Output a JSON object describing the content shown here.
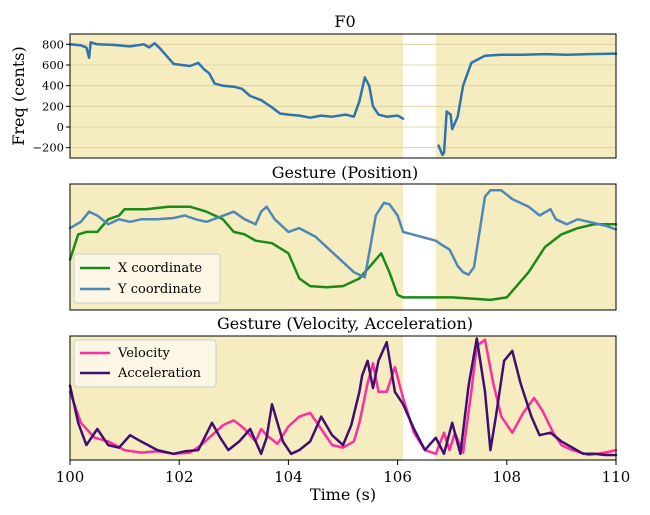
{
  "colors": {
    "panel_bg": "#f5edbf",
    "gap_bg": "#ffffff",
    "grid": "#d9cf9a",
    "f0_line": "#2e73b0",
    "x_coord": "#1a8a1a",
    "y_coord": "#4e88b8",
    "velocity": "#ff2ea0",
    "acceleration": "#3f0f72"
  },
  "chart_data": [
    {
      "type": "line",
      "title": "F0",
      "xlabel": "",
      "ylabel": "Freq (cents)",
      "xlim": [
        100,
        110
      ],
      "ylim": [
        -300,
        900
      ],
      "yticks": [
        -200,
        0,
        200,
        400,
        600,
        800
      ],
      "ytick_labels": [
        "−200",
        "0",
        "200",
        "400",
        "600",
        "800"
      ],
      "grid": "horizontal",
      "shaded_gap": [
        106.1,
        106.7
      ],
      "series": [
        {
          "name": "",
          "segments": [
            [
              [
                100.0,
                800
              ],
              [
                100.2,
                790
              ],
              [
                100.3,
                770
              ],
              [
                100.35,
                670
              ],
              [
                100.38,
                820
              ],
              [
                100.5,
                800
              ],
              [
                100.8,
                795
              ],
              [
                101.1,
                780
              ],
              [
                101.35,
                800
              ],
              [
                101.45,
                770
              ],
              [
                101.55,
                810
              ],
              [
                101.65,
                760
              ],
              [
                101.8,
                670
              ],
              [
                101.9,
                610
              ],
              [
                102.05,
                600
              ],
              [
                102.2,
                590
              ],
              [
                102.35,
                620
              ],
              [
                102.45,
                560
              ],
              [
                102.55,
                520
              ],
              [
                102.65,
                420
              ],
              [
                102.8,
                400
              ],
              [
                103.0,
                390
              ],
              [
                103.15,
                370
              ],
              [
                103.3,
                300
              ],
              [
                103.5,
                260
              ],
              [
                103.7,
                190
              ],
              [
                103.85,
                130
              ],
              [
                104.0,
                120
              ],
              [
                104.2,
                110
              ],
              [
                104.4,
                90
              ],
              [
                104.6,
                110
              ],
              [
                104.8,
                100
              ],
              [
                105.05,
                120
              ],
              [
                105.2,
                100
              ],
              [
                105.3,
                250
              ],
              [
                105.4,
                480
              ],
              [
                105.48,
                400
              ],
              [
                105.55,
                200
              ],
              [
                105.65,
                120
              ],
              [
                105.8,
                100
              ],
              [
                106.0,
                110
              ],
              [
                106.1,
                80
              ]
            ],
            [
              [
                106.75,
                -180
              ],
              [
                106.82,
                -270
              ],
              [
                106.85,
                -250
              ],
              [
                106.9,
                150
              ],
              [
                106.97,
                120
              ],
              [
                107.0,
                -20
              ],
              [
                107.1,
                100
              ],
              [
                107.2,
                400
              ],
              [
                107.35,
                620
              ],
              [
                107.6,
                690
              ],
              [
                107.9,
                700
              ],
              [
                108.3,
                700
              ],
              [
                108.7,
                705
              ],
              [
                109.1,
                700
              ],
              [
                109.5,
                705
              ],
              [
                110.0,
                710
              ]
            ]
          ]
        }
      ]
    },
    {
      "type": "line",
      "title": "Gesture (Position)",
      "xlabel": "",
      "ylabel": "",
      "xlim": [
        100,
        110
      ],
      "ylim": [
        0,
        1
      ],
      "shaded_gap": [
        106.1,
        106.7
      ],
      "legend_position": "lower-left",
      "series": [
        {
          "name": "X coordinate",
          "x": [
            100.0,
            100.15,
            100.3,
            100.5,
            100.7,
            100.9,
            101.0,
            101.4,
            101.8,
            102.2,
            102.5,
            102.8,
            103.0,
            103.2,
            103.4,
            103.7,
            104.0,
            104.2,
            104.4,
            104.7,
            105.0,
            105.3,
            105.5,
            105.7,
            105.85,
            106.0,
            106.1,
            106.5,
            107.0,
            107.4,
            107.7,
            108.0,
            108.1,
            108.4,
            108.7,
            109.0,
            109.3,
            109.6,
            109.8,
            110.0
          ],
          "values": [
            0.4,
            0.6,
            0.62,
            0.62,
            0.72,
            0.75,
            0.8,
            0.8,
            0.82,
            0.82,
            0.78,
            0.72,
            0.62,
            0.6,
            0.55,
            0.53,
            0.45,
            0.25,
            0.19,
            0.18,
            0.19,
            0.25,
            0.35,
            0.45,
            0.3,
            0.12,
            0.1,
            0.1,
            0.1,
            0.09,
            0.08,
            0.1,
            0.15,
            0.3,
            0.5,
            0.6,
            0.65,
            0.68,
            0.68,
            0.68
          ]
        },
        {
          "name": "Y coordinate",
          "x": [
            100.0,
            100.2,
            100.35,
            100.5,
            100.7,
            100.9,
            101.1,
            101.3,
            101.6,
            101.9,
            102.1,
            102.3,
            102.5,
            102.75,
            103.0,
            103.2,
            103.4,
            103.5,
            103.6,
            103.75,
            104.0,
            104.2,
            104.5,
            104.7,
            105.0,
            105.2,
            105.4,
            105.5,
            105.6,
            105.75,
            105.85,
            106.0,
            106.1,
            106.7,
            106.8,
            106.95,
            107.1,
            107.2,
            107.3,
            107.4,
            107.5,
            107.6,
            107.7,
            107.9,
            108.1,
            108.4,
            108.6,
            108.8,
            108.9,
            109.1,
            109.3,
            109.6,
            109.8,
            110.0
          ],
          "values": [
            0.65,
            0.7,
            0.78,
            0.75,
            0.68,
            0.72,
            0.7,
            0.72,
            0.72,
            0.73,
            0.75,
            0.72,
            0.7,
            0.74,
            0.78,
            0.72,
            0.68,
            0.78,
            0.82,
            0.72,
            0.62,
            0.65,
            0.58,
            0.5,
            0.38,
            0.3,
            0.26,
            0.5,
            0.75,
            0.85,
            0.84,
            0.75,
            0.62,
            0.55,
            0.52,
            0.48,
            0.35,
            0.3,
            0.28,
            0.34,
            0.62,
            0.9,
            0.95,
            0.95,
            0.88,
            0.82,
            0.75,
            0.8,
            0.72,
            0.68,
            0.72,
            0.69,
            0.67,
            0.64
          ]
        }
      ]
    },
    {
      "type": "line",
      "title": "Gesture (Velocity, Acceleration)",
      "xlabel": "Time (s)",
      "ylabel": "",
      "xlim": [
        100,
        110
      ],
      "ylim": [
        0,
        1
      ],
      "xticks": [
        100,
        102,
        104,
        106,
        108,
        110
      ],
      "xtick_labels": [
        "100",
        "102",
        "104",
        "106",
        "108",
        "110"
      ],
      "shaded_gap": [
        106.1,
        106.7
      ],
      "legend_position": "top-left",
      "series": [
        {
          "name": "Velocity",
          "x": [
            100.0,
            100.2,
            100.45,
            100.7,
            101.0,
            101.3,
            101.6,
            101.9,
            102.2,
            102.4,
            102.6,
            102.8,
            103.0,
            103.2,
            103.4,
            103.5,
            103.6,
            103.8,
            104.0,
            104.2,
            104.4,
            104.6,
            104.8,
            105.0,
            105.2,
            105.3,
            105.45,
            105.55,
            105.65,
            105.8,
            105.95,
            106.1,
            106.3,
            106.5,
            106.7,
            106.85,
            106.95,
            107.05,
            107.2,
            107.35,
            107.45,
            107.6,
            107.75,
            107.9,
            108.1,
            108.3,
            108.5,
            108.65,
            108.85,
            109.0,
            109.2,
            109.5,
            109.8,
            110.0
          ],
          "values": [
            0.55,
            0.3,
            0.18,
            0.15,
            0.08,
            0.06,
            0.07,
            0.05,
            0.06,
            0.12,
            0.2,
            0.28,
            0.32,
            0.25,
            0.15,
            0.25,
            0.2,
            0.13,
            0.27,
            0.35,
            0.38,
            0.25,
            0.12,
            0.1,
            0.15,
            0.3,
            0.62,
            0.78,
            0.55,
            0.55,
            0.75,
            0.5,
            0.22,
            0.08,
            0.05,
            0.22,
            0.08,
            0.22,
            0.06,
            0.55,
            0.92,
            0.97,
            0.62,
            0.35,
            0.22,
            0.38,
            0.5,
            0.4,
            0.22,
            0.12,
            0.08,
            0.04,
            0.06,
            0.08
          ]
        },
        {
          "name": "Acceleration",
          "x": [
            100.0,
            100.15,
            100.3,
            100.5,
            100.7,
            100.9,
            101.1,
            101.3,
            101.6,
            101.9,
            102.1,
            102.35,
            102.6,
            102.75,
            102.9,
            103.1,
            103.3,
            103.5,
            103.6,
            103.7,
            103.9,
            104.05,
            104.2,
            104.4,
            104.6,
            104.8,
            105.0,
            105.15,
            105.3,
            105.35,
            105.45,
            105.55,
            105.65,
            105.8,
            105.95,
            106.1,
            106.3,
            106.5,
            106.7,
            106.85,
            107.0,
            107.15,
            107.3,
            107.45,
            107.6,
            107.7,
            107.8,
            107.95,
            108.1,
            108.25,
            108.45,
            108.6,
            108.8,
            109.0,
            109.2,
            109.4,
            109.6,
            109.8,
            110.0
          ],
          "values": [
            0.6,
            0.3,
            0.12,
            0.25,
            0.12,
            0.1,
            0.2,
            0.15,
            0.08,
            0.05,
            0.07,
            0.08,
            0.3,
            0.18,
            0.08,
            0.15,
            0.25,
            0.05,
            0.18,
            0.45,
            0.15,
            0.05,
            0.08,
            0.15,
            0.35,
            0.2,
            0.12,
            0.28,
            0.55,
            0.68,
            0.8,
            0.58,
            0.8,
            0.95,
            0.55,
            0.45,
            0.25,
            0.08,
            0.18,
            0.05,
            0.3,
            0.05,
            0.6,
            0.98,
            0.55,
            0.08,
            0.35,
            0.8,
            0.88,
            0.62,
            0.35,
            0.2,
            0.22,
            0.15,
            0.1,
            0.05,
            0.05,
            0.04,
            0.04
          ]
        }
      ]
    }
  ]
}
